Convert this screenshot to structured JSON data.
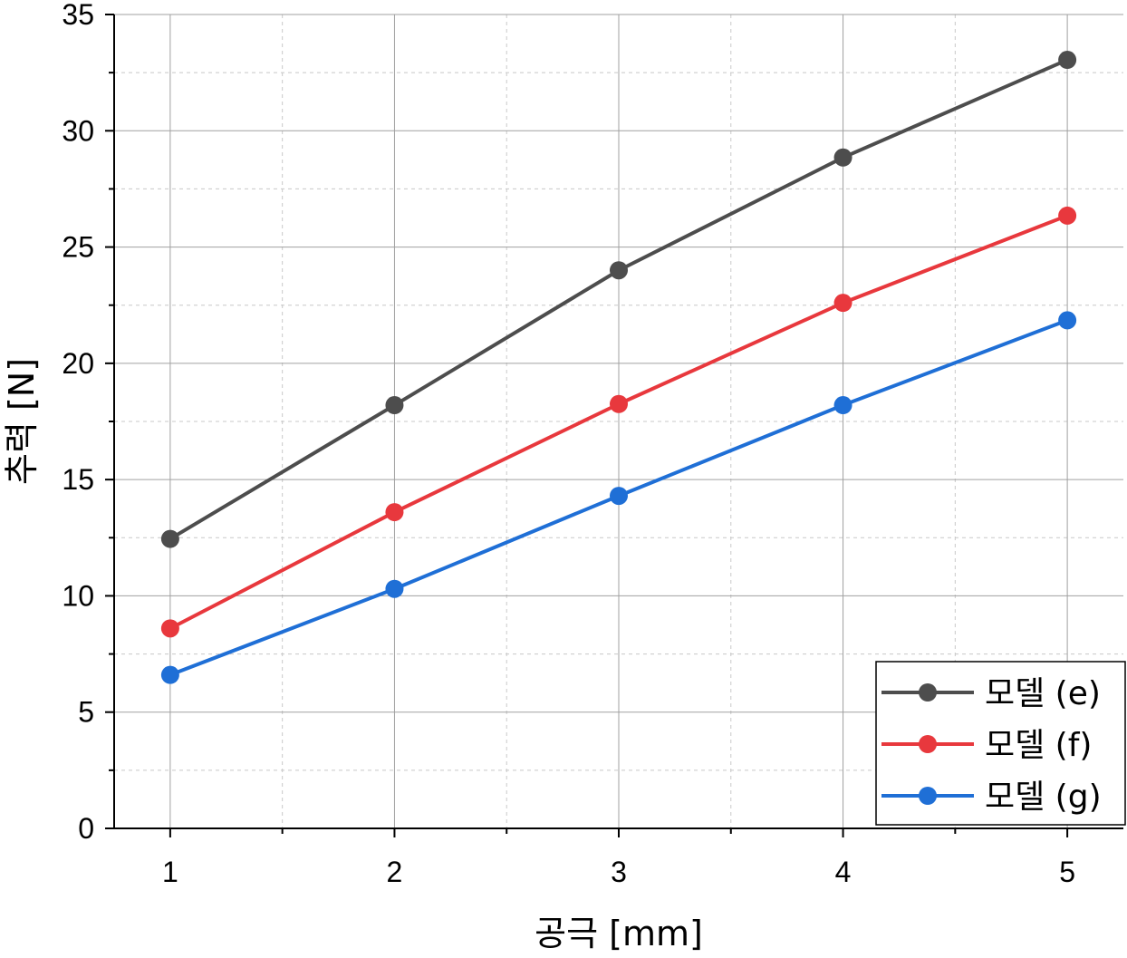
{
  "chart_data": {
    "type": "line",
    "xlabel": "공극 [mm]",
    "ylabel": "추력 [N]",
    "x": [
      1,
      2,
      3,
      4,
      5
    ],
    "xlim": [
      0.75,
      5.25
    ],
    "ylim": [
      0,
      35
    ],
    "x_ticks": [
      1,
      2,
      3,
      4,
      5
    ],
    "y_ticks": [
      0,
      5,
      10,
      15,
      20,
      25,
      30,
      35
    ],
    "grid": true,
    "legend_position": "bottom-right",
    "series": [
      {
        "name": "모델 (e)",
        "color": "#4d4d4d",
        "values": [
          12.45,
          18.2,
          24.0,
          28.85,
          33.05
        ]
      },
      {
        "name": "모델 (f)",
        "color": "#e8383d",
        "values": [
          8.6,
          13.6,
          18.25,
          22.6,
          26.35
        ]
      },
      {
        "name": "모델 (g)",
        "color": "#1f6fd6",
        "values": [
          6.6,
          10.3,
          14.3,
          18.2,
          21.85
        ]
      }
    ]
  }
}
